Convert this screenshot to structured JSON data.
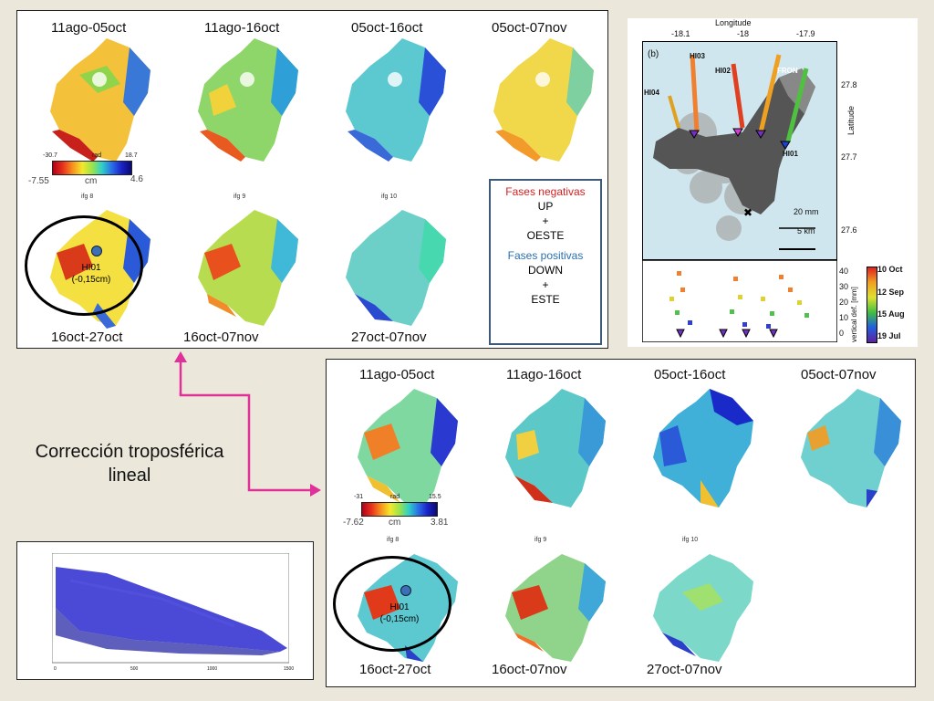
{
  "top_panel": {
    "top_row": [
      "11ago-05oct",
      "11ago-16oct",
      "05oct-16oct",
      "05oct-07nov"
    ],
    "bottom_row": [
      "16oct-27oct",
      "16oct-07nov",
      "27oct-07nov"
    ],
    "ifg_labels": [
      "ifg 8",
      "ifg 9",
      "ifg 10"
    ],
    "colorbar": {
      "rad_label": "rad",
      "rad_min": "-30.7",
      "rad_max": "18.7",
      "cm_label": "cm",
      "cm_min": "-7.55",
      "cm_max": "4.6"
    },
    "station": {
      "name": "HI01",
      "value": "(-0,15cm)"
    },
    "legend": {
      "negative_title": "Fases negativas",
      "negative_lines": [
        "UP",
        "+",
        "OESTE"
      ],
      "positive_title": "Fases positivas",
      "positive_lines": [
        "DOWN",
        "+",
        "ESTE"
      ],
      "negative_color": "#d62020",
      "positive_color": "#2a6fb0"
    }
  },
  "bottom_panel": {
    "top_row": [
      "11ago-05oct",
      "11ago-16oct",
      "05oct-16oct",
      "05oct-07nov"
    ],
    "bottom_row": [
      "16oct-27oct",
      "16oct-07nov",
      "27oct-07nov"
    ],
    "ifg_labels": [
      "ifg 8",
      "ifg 9",
      "ifg 10"
    ],
    "colorbar": {
      "rad_label": "rad",
      "rad_min": "-31",
      "rad_max": "15.5",
      "cm_label": "cm",
      "cm_min": "-7.62",
      "cm_max": "3.81"
    },
    "station": {
      "name": "HI01",
      "value": "(-0,15cm)"
    }
  },
  "correction_label": [
    "Corrección troposférica",
    "lineal"
  ],
  "arrow_color": "#e0309a",
  "gps_map": {
    "panel_tag": "(b)",
    "x_title": "Longitude",
    "x_ticks": [
      "-18.1",
      "-18",
      "-17.9"
    ],
    "y_title": "Latitude",
    "y_ticks": [
      "27.8",
      "27.7",
      "27.6"
    ],
    "stations": [
      "HI03",
      "HI02",
      "FRON",
      "HI04",
      "HI01"
    ],
    "scale_mm": "20 mm",
    "scale_km": "5 km"
  },
  "gps_plot": {
    "y_ticks": [
      "40",
      "30",
      "20",
      "10",
      "0"
    ],
    "y_title": "vertical def. [mm]",
    "date_labels": [
      "10 Oct",
      "12 Sep",
      "15 Aug",
      "19 Jul"
    ]
  },
  "scatter_plot": {
    "x_ticks": [
      "0",
      "500",
      "1000",
      "1500"
    ]
  }
}
